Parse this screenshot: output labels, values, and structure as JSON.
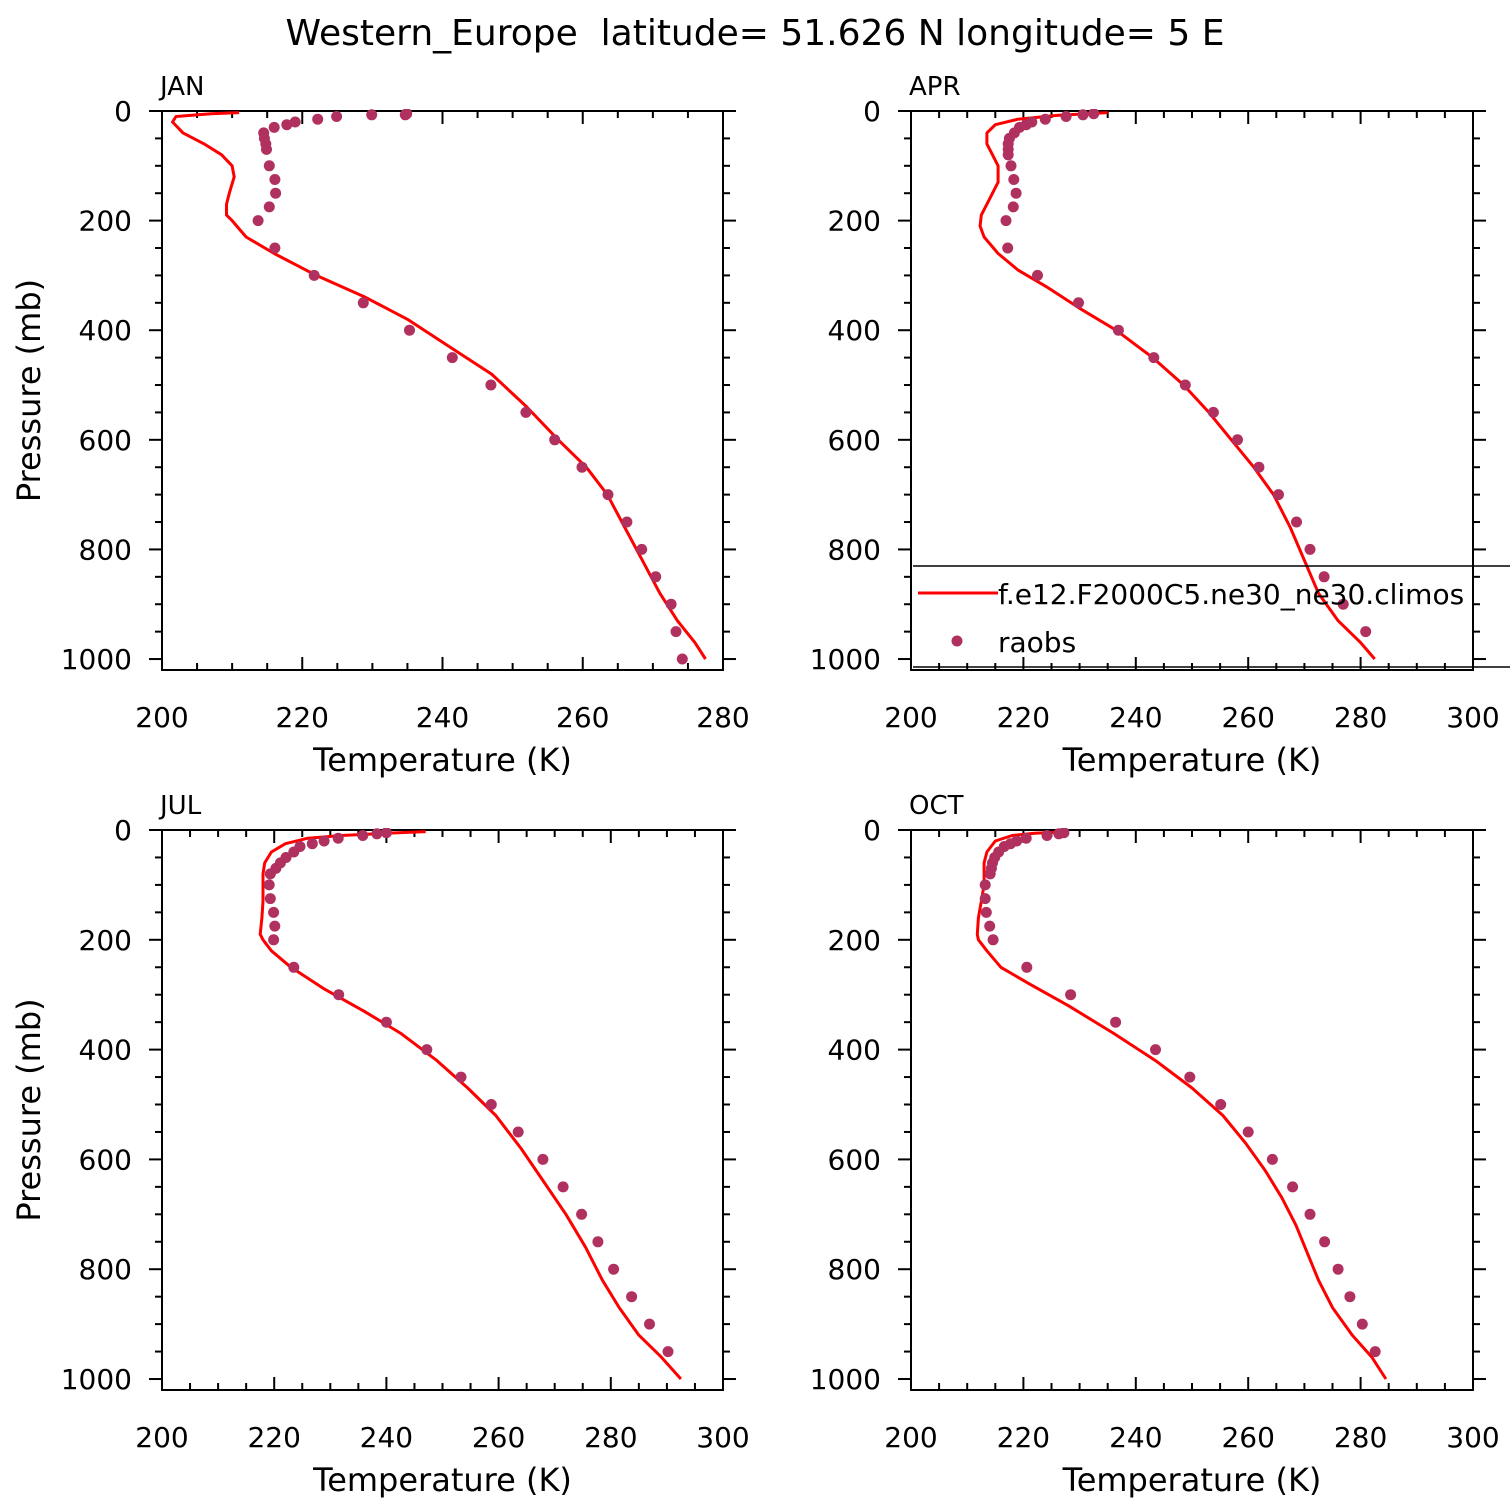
{
  "figure": {
    "title": "Western_Europe  latitude= 51.626 N longitude= 5 E"
  },
  "colors": {
    "model_line": "#ff0000",
    "obs_marker": "#b03060",
    "axis": "#000000"
  },
  "legend": {
    "location": "lower-right of APR panel",
    "entries": [
      {
        "label": "f.e12.F2000C5.ne30_ne30.climos",
        "kind": "line"
      },
      {
        "label": "raobs",
        "kind": "marker"
      }
    ]
  },
  "chart_data": [
    {
      "type": "line",
      "panel_label": "JAN",
      "xlabel": "Temperature (K)",
      "ylabel": "Pressure (mb)",
      "xlim": [
        200,
        280
      ],
      "ylim": [
        1020,
        0
      ],
      "xticks": [
        200,
        220,
        240,
        260,
        280
      ],
      "yticks": [
        0,
        200,
        400,
        600,
        800,
        1000
      ],
      "series": [
        {
          "name": "f.e12.F2000C5.ne30_ne30.climos",
          "style": "line",
          "x": [
            211,
            207,
            202,
            201.5,
            203,
            206,
            208.5,
            210,
            210.3,
            209.6,
            209.2,
            209.2,
            210,
            212,
            216,
            222,
            229,
            235,
            241,
            247,
            252,
            256.5,
            260.5,
            263.5,
            266,
            268.5,
            271,
            273.5,
            276,
            277.5
          ],
          "y": [
            3,
            5,
            10,
            20,
            40,
            60,
            80,
            100,
            120,
            150,
            170,
            190,
            200,
            230,
            260,
            300,
            340,
            380,
            430,
            480,
            540,
            600,
            650,
            700,
            760,
            820,
            880,
            930,
            970,
            1000
          ]
        },
        {
          "name": "raobs",
          "style": "marker",
          "x": [
            234.9,
            234.7,
            229.9,
            224.9,
            222.2,
            219,
            217.8,
            216,
            214.5,
            214.6,
            214.8,
            214.9,
            215.3,
            216.1,
            216.2,
            215.3,
            213.7,
            216.1,
            221.7,
            228.7,
            235.3,
            241.4,
            246.9,
            251.9,
            256,
            259.9,
            263.6,
            266.3,
            268.4,
            270.4,
            272.6,
            273.3,
            274.2
          ],
          "y": [
            5,
            7,
            7,
            10,
            15,
            20,
            25,
            30,
            40,
            50,
            60,
            70,
            100,
            125,
            150,
            175,
            200,
            250,
            300,
            350,
            400,
            450,
            500,
            550,
            600,
            650,
            700,
            750,
            800,
            850,
            900,
            950,
            1000
          ]
        }
      ]
    },
    {
      "type": "line",
      "panel_label": "APR",
      "xlabel": "Temperature (K)",
      "ylabel": "",
      "xlim": [
        200,
        300
      ],
      "ylim": [
        1020,
        0
      ],
      "xticks": [
        200,
        220,
        240,
        260,
        280,
        300
      ],
      "yticks": [
        0,
        200,
        400,
        600,
        800,
        1000
      ],
      "series": [
        {
          "name": "f.e12.F2000C5.ne30_ne30.climos",
          "style": "line",
          "x": [
            235,
            226,
            219,
            215,
            213.5,
            213.5,
            214.5,
            215.5,
            215.5,
            214,
            212.5,
            212.3,
            213,
            215.5,
            219,
            224,
            230,
            236.5,
            243,
            248.5,
            253,
            257,
            261,
            264.5,
            267.5,
            270,
            272.5,
            276,
            280,
            282.5
          ],
          "y": [
            3,
            8,
            15,
            25,
            40,
            60,
            80,
            100,
            130,
            160,
            190,
            210,
            230,
            260,
            290,
            320,
            360,
            400,
            450,
            500,
            550,
            600,
            650,
            700,
            760,
            820,
            880,
            930,
            970,
            1000
          ]
        },
        {
          "name": "raobs",
          "style": "marker",
          "x": [
            232.5,
            230.6,
            227.6,
            223.9,
            221.5,
            220.5,
            219.3,
            218.4,
            217.5,
            217.3,
            217.3,
            217.3,
            217.8,
            218.3,
            218.7,
            218.2,
            216.9,
            217.2,
            222.5,
            229.8,
            236.9,
            243.2,
            248.8,
            253.8,
            258.1,
            261.9,
            265.4,
            268.6,
            271,
            273.5,
            276.9,
            280.9
          ],
          "y": [
            5,
            7,
            10,
            15,
            20,
            25,
            30,
            40,
            50,
            60,
            70,
            80,
            100,
            125,
            150,
            175,
            200,
            250,
            300,
            350,
            400,
            450,
            500,
            550,
            600,
            650,
            700,
            750,
            800,
            850,
            900,
            950
          ]
        }
      ]
    },
    {
      "type": "line",
      "panel_label": "JUL",
      "xlabel": "Temperature (K)",
      "ylabel": "Pressure (mb)",
      "xlim": [
        200,
        300
      ],
      "ylim": [
        1020,
        0
      ],
      "xticks": [
        200,
        220,
        240,
        260,
        280,
        300
      ],
      "yticks": [
        0,
        200,
        400,
        600,
        800,
        1000
      ],
      "series": [
        {
          "name": "f.e12.F2000C5.ne30_ne30.climos",
          "style": "line",
          "x": [
            247,
            240,
            232,
            226,
            222,
            219.5,
            218.3,
            218,
            218,
            218,
            217.8,
            217.5,
            218,
            219.5,
            223,
            229,
            236,
            242.5,
            249,
            254.5,
            259.5,
            264,
            268,
            272,
            275.5,
            278.5,
            281.5,
            285,
            289,
            292.5
          ],
          "y": [
            3,
            6,
            10,
            15,
            25,
            40,
            60,
            80,
            100,
            130,
            160,
            190,
            200,
            220,
            250,
            290,
            330,
            370,
            420,
            470,
            520,
            580,
            640,
            700,
            760,
            820,
            870,
            920,
            960,
            1000
          ]
        },
        {
          "name": "raobs",
          "style": "marker",
          "x": [
            240,
            238.3,
            235.8,
            231.4,
            228.9,
            226.8,
            224.6,
            223.5,
            222.1,
            221.1,
            220.3,
            219.3,
            219.1,
            219.3,
            219.9,
            220.1,
            219.9,
            223.5,
            231.5,
            240,
            247.2,
            253.3,
            258.7,
            263.5,
            267.9,
            271.5,
            274.8,
            277.7,
            280.5,
            283.7,
            286.9,
            290.2
          ],
          "y": [
            5,
            7,
            10,
            15,
            20,
            25,
            30,
            40,
            50,
            60,
            70,
            80,
            100,
            125,
            150,
            175,
            200,
            250,
            300,
            350,
            400,
            450,
            500,
            550,
            600,
            650,
            700,
            750,
            800,
            850,
            900,
            950
          ]
        }
      ]
    },
    {
      "type": "line",
      "panel_label": "OCT",
      "xlabel": "Temperature (K)",
      "ylabel": "",
      "xlim": [
        200,
        300
      ],
      "ylim": [
        1020,
        0
      ],
      "xticks": [
        200,
        220,
        240,
        260,
        280,
        300
      ],
      "yticks": [
        0,
        200,
        400,
        600,
        800,
        1000
      ],
      "series": [
        {
          "name": "f.e12.F2000C5.ne30_ne30.climos",
          "style": "line",
          "x": [
            228,
            222,
            218,
            215,
            213.5,
            213,
            213,
            213,
            212.5,
            212,
            211.8,
            212,
            213.5,
            216,
            221,
            228,
            236,
            243.5,
            250,
            255.5,
            259.5,
            263,
            266,
            268.5,
            270.5,
            272.5,
            275,
            278.5,
            282,
            284.5
          ],
          "y": [
            3,
            6,
            10,
            20,
            40,
            60,
            80,
            100,
            130,
            160,
            190,
            200,
            220,
            250,
            280,
            320,
            370,
            420,
            470,
            520,
            570,
            620,
            670,
            720,
            770,
            820,
            870,
            920,
            960,
            1000
          ]
        },
        {
          "name": "raobs",
          "style": "marker",
          "x": [
            227.2,
            226.3,
            224.2,
            220.5,
            218.8,
            217.7,
            216.6,
            215.6,
            214.9,
            214.5,
            214.3,
            214.1,
            213.2,
            213.2,
            213.4,
            214,
            214.6,
            220.6,
            228.4,
            236.4,
            243.5,
            249.6,
            255.1,
            260,
            264.3,
            267.9,
            271,
            273.6,
            276,
            278.1,
            280.3,
            282.6
          ],
          "y": [
            5,
            7,
            10,
            15,
            20,
            25,
            30,
            40,
            50,
            60,
            70,
            80,
            100,
            125,
            150,
            175,
            200,
            250,
            300,
            350,
            400,
            450,
            500,
            550,
            600,
            650,
            700,
            750,
            800,
            850,
            900,
            950
          ]
        }
      ]
    }
  ]
}
